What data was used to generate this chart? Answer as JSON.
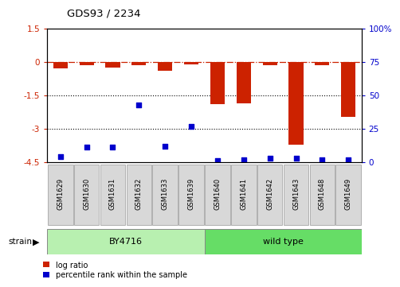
{
  "title": "GDS93 / 2234",
  "samples": [
    "GSM1629",
    "GSM1630",
    "GSM1631",
    "GSM1632",
    "GSM1633",
    "GSM1639",
    "GSM1640",
    "GSM1641",
    "GSM1642",
    "GSM1643",
    "GSM1648",
    "GSM1649"
  ],
  "log_ratio": [
    -0.3,
    -0.15,
    -0.25,
    -0.15,
    -0.4,
    -0.1,
    -1.9,
    -1.85,
    -0.15,
    -3.7,
    -0.15,
    -2.45
  ],
  "percentile": [
    4,
    11,
    11,
    43,
    12,
    27,
    1,
    2,
    3,
    3,
    2,
    2
  ],
  "ylim_left": [
    -4.5,
    1.5
  ],
  "ylim_right": [
    0,
    100
  ],
  "bar_color": "#cc2200",
  "point_color": "#0000cc",
  "dash_color": "#cc2200",
  "group1_color": "#b8f0b0",
  "group2_color": "#66dd66",
  "bar_width": 0.55
}
